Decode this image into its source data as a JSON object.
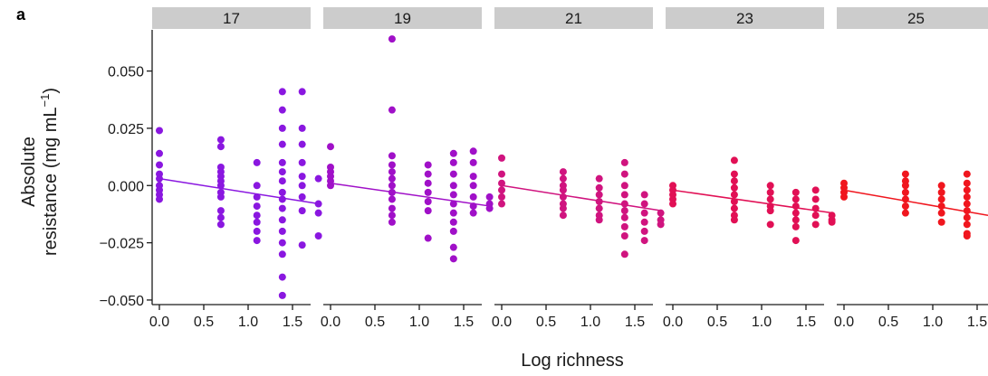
{
  "panel_label": "a",
  "chart_data": {
    "type": "scatter",
    "title": "",
    "xlabel": "Log richness",
    "ylabel_line1": "Absolute",
    "ylabel_line2": "resistance (mg mL",
    "ylabel_sup": "−1",
    "ylabel_end": ")",
    "xlim": [
      -0.05,
      1.85
    ],
    "ylim": [
      -0.052,
      0.068
    ],
    "x_ticks": [
      0.0,
      0.5,
      1.0,
      1.5
    ],
    "x_tick_labels": [
      "0.0",
      "0.5",
      "1.0",
      "1.5"
    ],
    "y_ticks": [
      -0.05,
      -0.025,
      0.0,
      0.025,
      0.05
    ],
    "y_tick_labels": [
      "−0.050",
      "−0.025",
      "0.000",
      "0.025",
      "0.050"
    ],
    "grid": false,
    "legend": "none",
    "x_levels": [
      0.0,
      0.693,
      1.099,
      1.386,
      1.609,
      1.792
    ],
    "facets": [
      {
        "label": "17",
        "color": "#8a17e0",
        "fit": {
          "x0": 0.0,
          "y0": 0.003,
          "x1": 1.8,
          "y1": -0.008
        },
        "points": [
          [
            0.0,
            0.024
          ],
          [
            0.0,
            0.014
          ],
          [
            0.0,
            0.009
          ],
          [
            0.0,
            0.005
          ],
          [
            0.0,
            0.003
          ],
          [
            0.0,
            0.0
          ],
          [
            0.0,
            -0.002
          ],
          [
            0.0,
            -0.004
          ],
          [
            0.0,
            -0.006
          ],
          [
            0.693,
            0.02
          ],
          [
            0.693,
            0.017
          ],
          [
            0.693,
            0.008
          ],
          [
            0.693,
            0.006
          ],
          [
            0.693,
            0.004
          ],
          [
            0.693,
            0.002
          ],
          [
            0.693,
            0.0
          ],
          [
            0.693,
            -0.003
          ],
          [
            0.693,
            -0.005
          ],
          [
            0.693,
            -0.011
          ],
          [
            0.693,
            -0.014
          ],
          [
            0.693,
            -0.017
          ],
          [
            1.099,
            0.01
          ],
          [
            1.099,
            0.0
          ],
          [
            1.099,
            -0.005
          ],
          [
            1.099,
            -0.009
          ],
          [
            1.099,
            -0.013
          ],
          [
            1.099,
            -0.016
          ],
          [
            1.099,
            -0.02
          ],
          [
            1.099,
            -0.024
          ],
          [
            1.386,
            0.041
          ],
          [
            1.386,
            0.033
          ],
          [
            1.386,
            0.025
          ],
          [
            1.386,
            0.018
          ],
          [
            1.386,
            0.01
          ],
          [
            1.386,
            0.006
          ],
          [
            1.386,
            0.002
          ],
          [
            1.386,
            -0.003
          ],
          [
            1.386,
            -0.006
          ],
          [
            1.386,
            -0.01
          ],
          [
            1.386,
            -0.015
          ],
          [
            1.386,
            -0.02
          ],
          [
            1.386,
            -0.025
          ],
          [
            1.386,
            -0.03
          ],
          [
            1.386,
            -0.04
          ],
          [
            1.386,
            -0.048
          ],
          [
            1.609,
            0.041
          ],
          [
            1.609,
            0.025
          ],
          [
            1.609,
            0.018
          ],
          [
            1.609,
            0.01
          ],
          [
            1.609,
            0.004
          ],
          [
            1.609,
            0.0
          ],
          [
            1.609,
            -0.005
          ],
          [
            1.609,
            -0.011
          ],
          [
            1.609,
            -0.026
          ],
          [
            1.792,
            0.003
          ],
          [
            1.792,
            -0.008
          ],
          [
            1.792,
            -0.012
          ],
          [
            1.792,
            -0.022
          ]
        ]
      },
      {
        "label": "19",
        "color": "#a010c8",
        "fit": {
          "x0": 0.0,
          "y0": 0.001,
          "x1": 1.8,
          "y1": -0.009
        },
        "points": [
          [
            0.0,
            0.017
          ],
          [
            0.0,
            0.008
          ],
          [
            0.0,
            0.006
          ],
          [
            0.0,
            0.004
          ],
          [
            0.0,
            0.002
          ],
          [
            0.0,
            0.0
          ],
          [
            0.693,
            0.064
          ],
          [
            0.693,
            0.033
          ],
          [
            0.693,
            0.013
          ],
          [
            0.693,
            0.009
          ],
          [
            0.693,
            0.006
          ],
          [
            0.693,
            0.003
          ],
          [
            0.693,
            0.0
          ],
          [
            0.693,
            -0.003
          ],
          [
            0.693,
            -0.006
          ],
          [
            0.693,
            -0.01
          ],
          [
            0.693,
            -0.013
          ],
          [
            0.693,
            -0.016
          ],
          [
            1.099,
            0.009
          ],
          [
            1.099,
            0.005
          ],
          [
            1.099,
            0.001
          ],
          [
            1.099,
            -0.003
          ],
          [
            1.099,
            -0.007
          ],
          [
            1.099,
            -0.011
          ],
          [
            1.099,
            -0.023
          ],
          [
            1.386,
            0.014
          ],
          [
            1.386,
            0.01
          ],
          [
            1.386,
            0.005
          ],
          [
            1.386,
            0.0
          ],
          [
            1.386,
            -0.004
          ],
          [
            1.386,
            -0.008
          ],
          [
            1.386,
            -0.012
          ],
          [
            1.386,
            -0.016
          ],
          [
            1.386,
            -0.02
          ],
          [
            1.386,
            -0.027
          ],
          [
            1.386,
            -0.032
          ],
          [
            1.609,
            0.015
          ],
          [
            1.609,
            0.01
          ],
          [
            1.609,
            0.004
          ],
          [
            1.609,
            0.0
          ],
          [
            1.609,
            -0.005
          ],
          [
            1.609,
            -0.009
          ],
          [
            1.609,
            -0.012
          ],
          [
            1.792,
            -0.005
          ],
          [
            1.792,
            -0.008
          ],
          [
            1.792,
            -0.01
          ]
        ]
      },
      {
        "label": "21",
        "color": "#d0147f",
        "fit": {
          "x0": 0.0,
          "y0": 0.0,
          "x1": 1.8,
          "y1": -0.011
        },
        "points": [
          [
            0.0,
            0.012
          ],
          [
            0.0,
            0.005
          ],
          [
            0.0,
            0.001
          ],
          [
            0.0,
            -0.002
          ],
          [
            0.0,
            -0.005
          ],
          [
            0.0,
            -0.008
          ],
          [
            0.693,
            0.006
          ],
          [
            0.693,
            0.003
          ],
          [
            0.693,
            0.0
          ],
          [
            0.693,
            -0.002
          ],
          [
            0.693,
            -0.005
          ],
          [
            0.693,
            -0.008
          ],
          [
            0.693,
            -0.01
          ],
          [
            0.693,
            -0.013
          ],
          [
            1.099,
            0.003
          ],
          [
            1.099,
            -0.001
          ],
          [
            1.099,
            -0.004
          ],
          [
            1.099,
            -0.007
          ],
          [
            1.099,
            -0.01
          ],
          [
            1.099,
            -0.013
          ],
          [
            1.099,
            -0.015
          ],
          [
            1.386,
            0.01
          ],
          [
            1.386,
            0.005
          ],
          [
            1.386,
            0.0
          ],
          [
            1.386,
            -0.004
          ],
          [
            1.386,
            -0.008
          ],
          [
            1.386,
            -0.011
          ],
          [
            1.386,
            -0.014
          ],
          [
            1.386,
            -0.018
          ],
          [
            1.386,
            -0.022
          ],
          [
            1.386,
            -0.03
          ],
          [
            1.609,
            -0.004
          ],
          [
            1.609,
            -0.008
          ],
          [
            1.609,
            -0.012
          ],
          [
            1.609,
            -0.016
          ],
          [
            1.609,
            -0.02
          ],
          [
            1.609,
            -0.024
          ],
          [
            1.792,
            -0.012
          ],
          [
            1.792,
            -0.015
          ],
          [
            1.792,
            -0.017
          ]
        ]
      },
      {
        "label": "23",
        "color": "#e11055",
        "fit": {
          "x0": 0.0,
          "y0": -0.002,
          "x1": 1.8,
          "y1": -0.012
        },
        "points": [
          [
            0.0,
            0.0
          ],
          [
            0.0,
            -0.002
          ],
          [
            0.0,
            -0.004
          ],
          [
            0.0,
            -0.006
          ],
          [
            0.0,
            -0.008
          ],
          [
            0.693,
            0.011
          ],
          [
            0.693,
            0.005
          ],
          [
            0.693,
            0.002
          ],
          [
            0.693,
            -0.001
          ],
          [
            0.693,
            -0.004
          ],
          [
            0.693,
            -0.007
          ],
          [
            0.693,
            -0.01
          ],
          [
            0.693,
            -0.013
          ],
          [
            0.693,
            -0.015
          ],
          [
            1.099,
            0.0
          ],
          [
            1.099,
            -0.003
          ],
          [
            1.099,
            -0.006
          ],
          [
            1.099,
            -0.009
          ],
          [
            1.099,
            -0.011
          ],
          [
            1.099,
            -0.017
          ],
          [
            1.386,
            -0.003
          ],
          [
            1.386,
            -0.006
          ],
          [
            1.386,
            -0.009
          ],
          [
            1.386,
            -0.012
          ],
          [
            1.386,
            -0.015
          ],
          [
            1.386,
            -0.018
          ],
          [
            1.386,
            -0.024
          ],
          [
            1.609,
            -0.002
          ],
          [
            1.609,
            -0.006
          ],
          [
            1.609,
            -0.01
          ],
          [
            1.609,
            -0.013
          ],
          [
            1.609,
            -0.017
          ],
          [
            1.792,
            -0.013
          ],
          [
            1.792,
            -0.015
          ],
          [
            1.792,
            -0.016
          ]
        ]
      },
      {
        "label": "25",
        "color": "#f0161e",
        "fit": {
          "x0": 0.0,
          "y0": -0.002,
          "x1": 1.9,
          "y1": -0.013
        },
        "points": [
          [
            0.0,
            0.001
          ],
          [
            0.0,
            -0.001
          ],
          [
            0.0,
            -0.003
          ],
          [
            0.0,
            -0.005
          ],
          [
            0.693,
            0.005
          ],
          [
            0.693,
            0.002
          ],
          [
            0.693,
            0.0
          ],
          [
            0.693,
            -0.003
          ],
          [
            0.693,
            -0.006
          ],
          [
            0.693,
            -0.009
          ],
          [
            0.693,
            -0.012
          ],
          [
            1.099,
            0.0
          ],
          [
            1.099,
            -0.003
          ],
          [
            1.099,
            -0.006
          ],
          [
            1.099,
            -0.009
          ],
          [
            1.099,
            -0.012
          ],
          [
            1.099,
            -0.016
          ],
          [
            1.386,
            0.005
          ],
          [
            1.386,
            0.001
          ],
          [
            1.386,
            -0.002
          ],
          [
            1.386,
            -0.005
          ],
          [
            1.386,
            -0.008
          ],
          [
            1.386,
            -0.011
          ],
          [
            1.386,
            -0.014
          ],
          [
            1.386,
            -0.017
          ],
          [
            1.386,
            -0.021
          ],
          [
            1.386,
            -0.022
          ],
          [
            1.609,
            -0.003
          ],
          [
            1.609,
            -0.006
          ],
          [
            1.609,
            -0.009
          ],
          [
            1.609,
            -0.012
          ],
          [
            1.609,
            -0.015
          ],
          [
            1.609,
            -0.018
          ],
          [
            1.792,
            -0.008
          ],
          [
            1.792,
            -0.011
          ],
          [
            1.792,
            -0.014
          ],
          [
            1.9,
            -0.01
          ],
          [
            1.9,
            -0.013
          ]
        ]
      }
    ]
  }
}
